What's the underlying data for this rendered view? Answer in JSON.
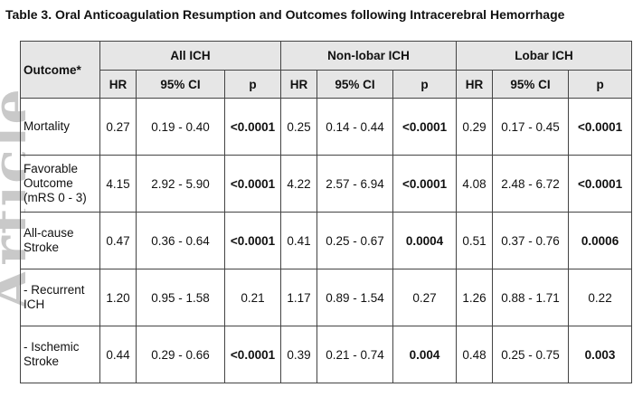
{
  "watermark": "Article",
  "table": {
    "title": "Table 3. Oral Anticoagulation Resumption and Outcomes following Intracerebral Hemorrhage",
    "outcome_header": "Outcome*",
    "groups": [
      "All ICH",
      "Non-lobar ICH",
      "Lobar ICH"
    ],
    "sub_headers": [
      "HR",
      "95% CI",
      "p"
    ],
    "rows": [
      {
        "outcome": "Mortality",
        "cells": [
          {
            "hr": "0.27",
            "ci": "0.19 - 0.40",
            "p": "<0.0001",
            "p_bold": true
          },
          {
            "hr": "0.25",
            "ci": "0.14 - 0.44",
            "p": "<0.0001",
            "p_bold": true
          },
          {
            "hr": "0.29",
            "ci": "0.17 - 0.45",
            "p": "<0.0001",
            "p_bold": true
          }
        ]
      },
      {
        "outcome": "Favorable Outcome (mRS 0 - 3)",
        "cells": [
          {
            "hr": "4.15",
            "ci": "2.92 - 5.90",
            "p": "<0.0001",
            "p_bold": true
          },
          {
            "hr": "4.22",
            "ci": "2.57 - 6.94",
            "p": "<0.0001",
            "p_bold": true
          },
          {
            "hr": "4.08",
            "ci": "2.48 - 6.72",
            "p": "<0.0001",
            "p_bold": true
          }
        ]
      },
      {
        "outcome": "All-cause Stroke",
        "cells": [
          {
            "hr": "0.47",
            "ci": "0.36 - 0.64",
            "p": "<0.0001",
            "p_bold": true
          },
          {
            "hr": "0.41",
            "ci": "0.25 - 0.67",
            "p": "0.0004",
            "p_bold": true
          },
          {
            "hr": "0.51",
            "ci": "0.37 - 0.76",
            "p": "0.0006",
            "p_bold": true
          }
        ]
      },
      {
        "outcome": "- Recurrent ICH",
        "cells": [
          {
            "hr": "1.20",
            "ci": "0.95 - 1.58",
            "p": "0.21",
            "p_bold": false
          },
          {
            "hr": "1.17",
            "ci": "0.89 - 1.54",
            "p": "0.27",
            "p_bold": false
          },
          {
            "hr": "1.26",
            "ci": "0.88 - 1.71",
            "p": "0.22",
            "p_bold": false
          }
        ]
      },
      {
        "outcome": "- Ischemic Stroke",
        "cells": [
          {
            "hr": "0.44",
            "ci": "0.29 - 0.66",
            "p": "<0.0001",
            "p_bold": true
          },
          {
            "hr": "0.39",
            "ci": "0.21 - 0.74",
            "p": "0.004",
            "p_bold": true
          },
          {
            "hr": "0.48",
            "ci": "0.25 - 0.75",
            "p": "0.003",
            "p_bold": true
          }
        ]
      }
    ]
  }
}
